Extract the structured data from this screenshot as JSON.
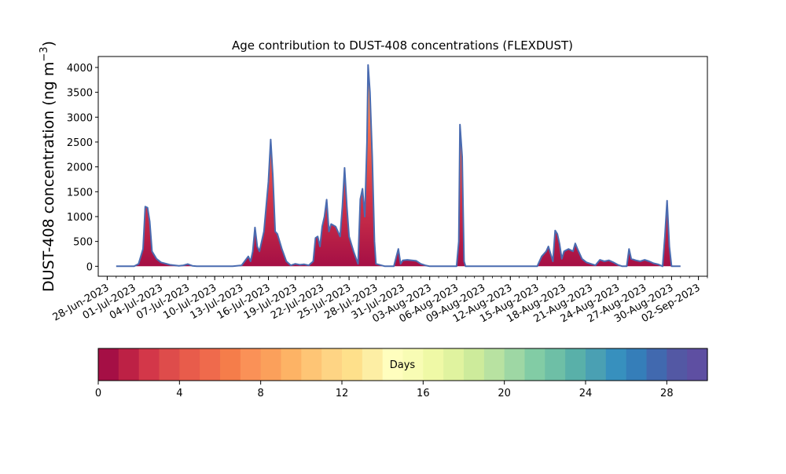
{
  "chart_data": {
    "type": "area",
    "title": "Age contribution to DUST-408 concentrations (FLEXDUST)",
    "xlabel": "",
    "ylabel": "DUST-408 concentration (ng m",
    "ylabel_unit_sup": "−3",
    "ylabel_close": ")",
    "x_start": "2023-06-29",
    "x_end": "2023-08-31",
    "xlim": [
      "2023-06-27",
      "2023-09-03"
    ],
    "ylim": [
      -200,
      4220
    ],
    "y_ticks": [
      0,
      500,
      1000,
      1500,
      2000,
      2500,
      3000,
      3500,
      4000
    ],
    "x_tick_labels": [
      "28-Jun-2023",
      "01-Jul-2023",
      "04-Jul-2023",
      "07-Jul-2023",
      "10-Jul-2023",
      "13-Jul-2023",
      "16-Jul-2023",
      "19-Jul-2023",
      "22-Jul-2023",
      "25-Jul-2023",
      "28-Jul-2023",
      "31-Jul-2023",
      "03-Aug-2023",
      "06-Aug-2023",
      "09-Aug-2023",
      "12-Aug-2023",
      "15-Aug-2023",
      "18-Aug-2023",
      "21-Aug-2023",
      "24-Aug-2023",
      "27-Aug-2023",
      "30-Aug-2023",
      "02-Sep-2023"
    ],
    "x_tick_dates": [
      "2023-06-28",
      "2023-07-01",
      "2023-07-04",
      "2023-07-07",
      "2023-07-10",
      "2023-07-13",
      "2023-07-16",
      "2023-07-19",
      "2023-07-22",
      "2023-07-25",
      "2023-07-28",
      "2023-07-31",
      "2023-08-03",
      "2023-08-06",
      "2023-08-09",
      "2023-08-12",
      "2023-08-15",
      "2023-08-18",
      "2023-08-21",
      "2023-08-24",
      "2023-08-27",
      "2023-08-30",
      "2023-09-02"
    ],
    "total_series": {
      "name": "",
      "color": "#4a6bb0",
      "points": [
        [
          "2023-06-29",
          0
        ],
        [
          "2023-07-01",
          0
        ],
        [
          "2023-07-01 12:00",
          50
        ],
        [
          "2023-07-02",
          350
        ],
        [
          "2023-07-02 06:00",
          1200
        ],
        [
          "2023-07-02 12:00",
          1180
        ],
        [
          "2023-07-02 18:00",
          900
        ],
        [
          "2023-07-03",
          300
        ],
        [
          "2023-07-03 12:00",
          150
        ],
        [
          "2023-07-04",
          80
        ],
        [
          "2023-07-05",
          30
        ],
        [
          "2023-07-06",
          10
        ],
        [
          "2023-07-06 12:00",
          20
        ],
        [
          "2023-07-07",
          45
        ],
        [
          "2023-07-07 12:00",
          10
        ],
        [
          "2023-07-08",
          0
        ],
        [
          "2023-07-12",
          0
        ],
        [
          "2023-07-13",
          20
        ],
        [
          "2023-07-13 18:00",
          200
        ],
        [
          "2023-07-14",
          100
        ],
        [
          "2023-07-14 06:00",
          300
        ],
        [
          "2023-07-14 12:00",
          780
        ],
        [
          "2023-07-14 18:00",
          400
        ],
        [
          "2023-07-15",
          300
        ],
        [
          "2023-07-15 12:00",
          700
        ],
        [
          "2023-07-16",
          1700
        ],
        [
          "2023-07-16 06:00",
          2550
        ],
        [
          "2023-07-16 12:00",
          1800
        ],
        [
          "2023-07-16 18:00",
          700
        ],
        [
          "2023-07-17",
          650
        ],
        [
          "2023-07-17 12:00",
          350
        ],
        [
          "2023-07-18",
          100
        ],
        [
          "2023-07-18 12:00",
          20
        ],
        [
          "2023-07-19",
          50
        ],
        [
          "2023-07-19 12:00",
          30
        ],
        [
          "2023-07-20",
          40
        ],
        [
          "2023-07-20 12:00",
          20
        ],
        [
          "2023-07-21",
          100
        ],
        [
          "2023-07-21 06:00",
          570
        ],
        [
          "2023-07-21 12:00",
          600
        ],
        [
          "2023-07-21 18:00",
          400
        ],
        [
          "2023-07-22",
          800
        ],
        [
          "2023-07-22 06:00",
          1000
        ],
        [
          "2023-07-22 12:00",
          1340
        ],
        [
          "2023-07-22 18:00",
          700
        ],
        [
          "2023-07-23",
          850
        ],
        [
          "2023-07-23 12:00",
          800
        ],
        [
          "2023-07-23 18:00",
          700
        ],
        [
          "2023-07-24",
          600
        ],
        [
          "2023-07-24 06:00",
          1200
        ],
        [
          "2023-07-24 12:00",
          1980
        ],
        [
          "2023-07-24 18:00",
          1200
        ],
        [
          "2023-07-25",
          600
        ],
        [
          "2023-07-25 12:00",
          300
        ],
        [
          "2023-07-26",
          50
        ],
        [
          "2023-07-26 06:00",
          1350
        ],
        [
          "2023-07-26 12:00",
          1560
        ],
        [
          "2023-07-26 18:00",
          1000
        ],
        [
          "2023-07-27",
          2500
        ],
        [
          "2023-07-27 03:00",
          4050
        ],
        [
          "2023-07-27 08:00",
          3500
        ],
        [
          "2023-07-27 14:00",
          2200
        ],
        [
          "2023-07-27 20:00",
          500
        ],
        [
          "2023-07-28",
          50
        ],
        [
          "2023-07-29",
          0
        ],
        [
          "2023-07-30",
          0
        ],
        [
          "2023-07-30 12:00",
          350
        ],
        [
          "2023-07-30 18:00",
          50
        ],
        [
          "2023-07-31",
          120
        ],
        [
          "2023-07-31 12:00",
          130
        ],
        [
          "2023-08-01",
          120
        ],
        [
          "2023-08-01 12:00",
          110
        ],
        [
          "2023-08-02",
          50
        ],
        [
          "2023-08-02 12:00",
          20
        ],
        [
          "2023-08-03",
          0
        ],
        [
          "2023-08-06",
          0
        ],
        [
          "2023-08-06 06:00",
          500
        ],
        [
          "2023-08-06 09:00",
          2850
        ],
        [
          "2023-08-06 15:00",
          2200
        ],
        [
          "2023-08-06 20:00",
          100
        ],
        [
          "2023-08-07",
          0
        ],
        [
          "2023-08-15",
          0
        ],
        [
          "2023-08-15 12:00",
          200
        ],
        [
          "2023-08-16",
          300
        ],
        [
          "2023-08-16 06:00",
          400
        ],
        [
          "2023-08-16 12:00",
          250
        ],
        [
          "2023-08-16 18:00",
          100
        ],
        [
          "2023-08-17",
          720
        ],
        [
          "2023-08-17 06:00",
          650
        ],
        [
          "2023-08-17 12:00",
          450
        ],
        [
          "2023-08-17 18:00",
          150
        ],
        [
          "2023-08-18",
          300
        ],
        [
          "2023-08-18 12:00",
          350
        ],
        [
          "2023-08-19",
          300
        ],
        [
          "2023-08-19 06:00",
          460
        ],
        [
          "2023-08-19 12:00",
          350
        ],
        [
          "2023-08-20",
          150
        ],
        [
          "2023-08-20 12:00",
          80
        ],
        [
          "2023-08-21",
          50
        ],
        [
          "2023-08-21 12:00",
          20
        ],
        [
          "2023-08-22",
          130
        ],
        [
          "2023-08-22 12:00",
          100
        ],
        [
          "2023-08-23",
          120
        ],
        [
          "2023-08-23 12:00",
          80
        ],
        [
          "2023-08-24",
          30
        ],
        [
          "2023-08-24 12:00",
          0
        ],
        [
          "2023-08-25",
          0
        ],
        [
          "2023-08-25 06:00",
          350
        ],
        [
          "2023-08-25 12:00",
          150
        ],
        [
          "2023-08-26",
          120
        ],
        [
          "2023-08-26 12:00",
          100
        ],
        [
          "2023-08-27",
          130
        ],
        [
          "2023-08-27 12:00",
          100
        ],
        [
          "2023-08-28",
          60
        ],
        [
          "2023-08-28 12:00",
          40
        ],
        [
          "2023-08-29",
          0
        ],
        [
          "2023-08-29 06:00",
          600
        ],
        [
          "2023-08-29 12:00",
          1320
        ],
        [
          "2023-08-29 18:00",
          400
        ],
        [
          "2023-08-30",
          0
        ],
        [
          "2023-08-31",
          0
        ]
      ]
    },
    "colorbar": {
      "label": "Days",
      "range": [
        0,
        30
      ],
      "ticks": [
        0,
        4,
        8,
        12,
        16,
        20,
        24,
        28
      ],
      "colors": [
        "#a50f45",
        "#bd2145",
        "#d33749",
        "#de4c4b",
        "#e85c4b",
        "#ef6a4c",
        "#f57d4a",
        "#fa9157",
        "#fba05b",
        "#fdb365",
        "#fec575",
        "#fed484",
        "#fee08b",
        "#fdeea4",
        "#fffebe",
        "#f8fcb4",
        "#eff9a6",
        "#e0f39f",
        "#cdeb9b",
        "#b8e2a1",
        "#9ed7a4",
        "#82cca5",
        "#6ebfa6",
        "#59b0a9",
        "#4aa0b3",
        "#3790be",
        "#357eb9",
        "#4169af",
        "#5358a4",
        "#5e4fa2"
      ]
    }
  }
}
